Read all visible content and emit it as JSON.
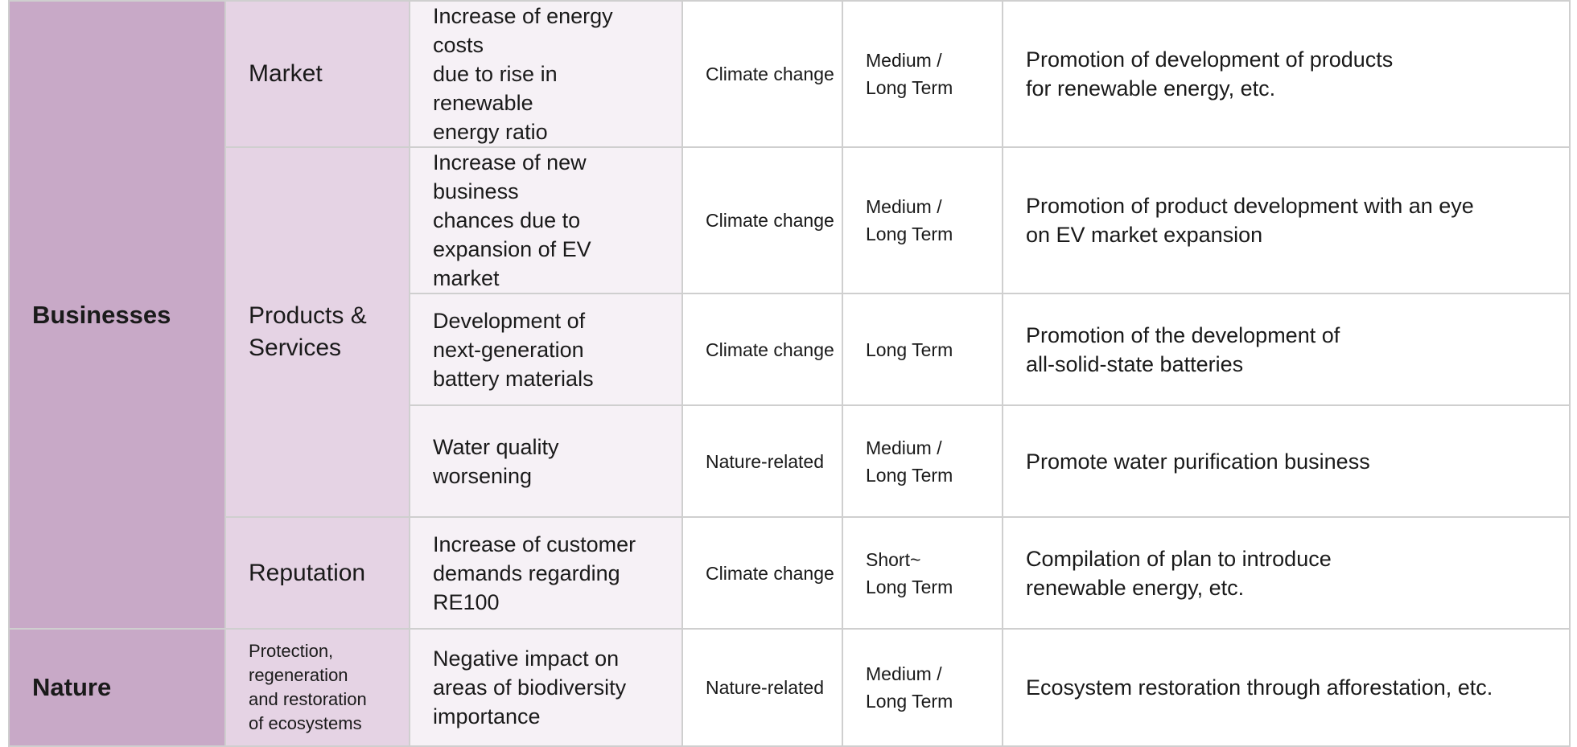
{
  "table": {
    "categories": {
      "businesses": "Businesses",
      "nature": "Nature"
    },
    "subcategories": {
      "market": "Market",
      "products": "Products &\nServices",
      "reputation": "Reputation",
      "ecosystems": "Protection,\nregeneration\nand restoration\nof ecosystems"
    },
    "rows": [
      {
        "risk": "Increase of energy costs\ndue to rise in renewable\nenergy ratio",
        "type": "Climate change",
        "term": "Medium /\nLong Term",
        "response": "Promotion of development of products\nfor renewable energy, etc."
      },
      {
        "risk": "Increase of new business\nchances due to\nexpansion of EV market",
        "type": "Climate change",
        "term": "Medium /\nLong Term",
        "response": "Promotion of product development with an eye\non EV market expansion"
      },
      {
        "risk": "Development of\nnext-generation\nbattery materials",
        "type": "Climate change",
        "term": "Long Term",
        "response": "Promotion of the development of\nall-solid-state batteries"
      },
      {
        "risk": "Water quality worsening",
        "type": "Nature-related",
        "term": "Medium /\nLong Term",
        "response": "Promote water purification business"
      },
      {
        "risk": "Increase of customer\ndemands regarding RE100",
        "type": "Climate change",
        "term": "Short~\nLong Term",
        "response": "Compilation of plan to introduce\nrenewable energy, etc."
      },
      {
        "risk": "Negative impact on\nareas of biodiversity\nimportance",
        "type": "Nature-related",
        "term": "Medium /\nLong Term",
        "response": "Ecosystem restoration through afforestation, etc."
      }
    ]
  }
}
